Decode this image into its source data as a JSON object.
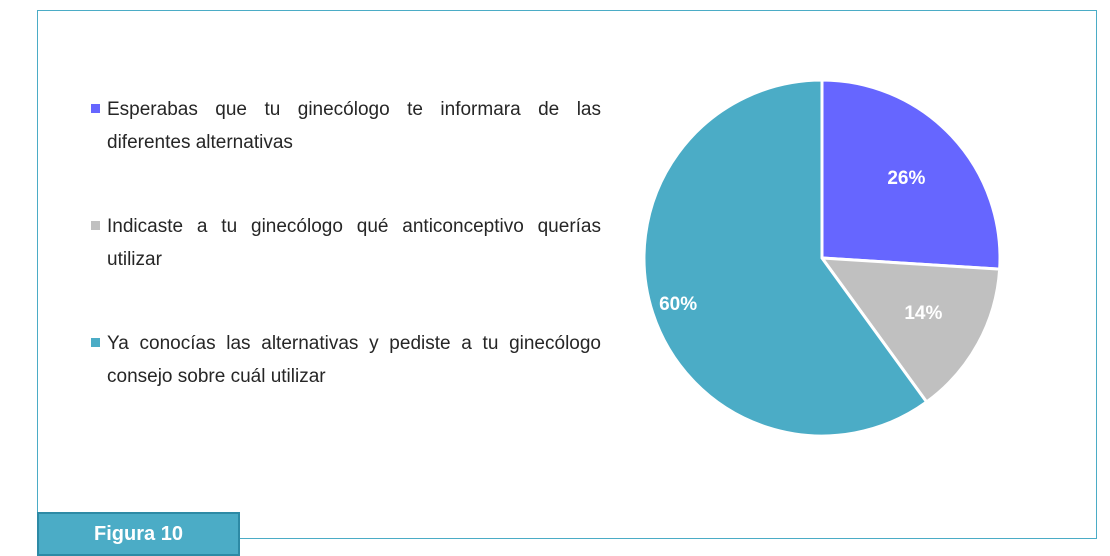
{
  "chart_data": {
    "type": "pie",
    "categories": [
      "Esperabas que tu ginecólogo te informara de las diferentes alternativas",
      "Indicaste a tu ginecólogo qué anticonceptivo querías utilizar",
      "Ya conocías las alternativas y pediste a tu ginecólogo consejo sobre cuál utilizar"
    ],
    "values": [
      26,
      14,
      60
    ],
    "value_labels": [
      "26%",
      "14%",
      "60%"
    ],
    "colors": [
      "#6666ff",
      "#c0c0c0",
      "#4bacc6"
    ],
    "legend": "left",
    "figure_label": "Figura 10"
  }
}
